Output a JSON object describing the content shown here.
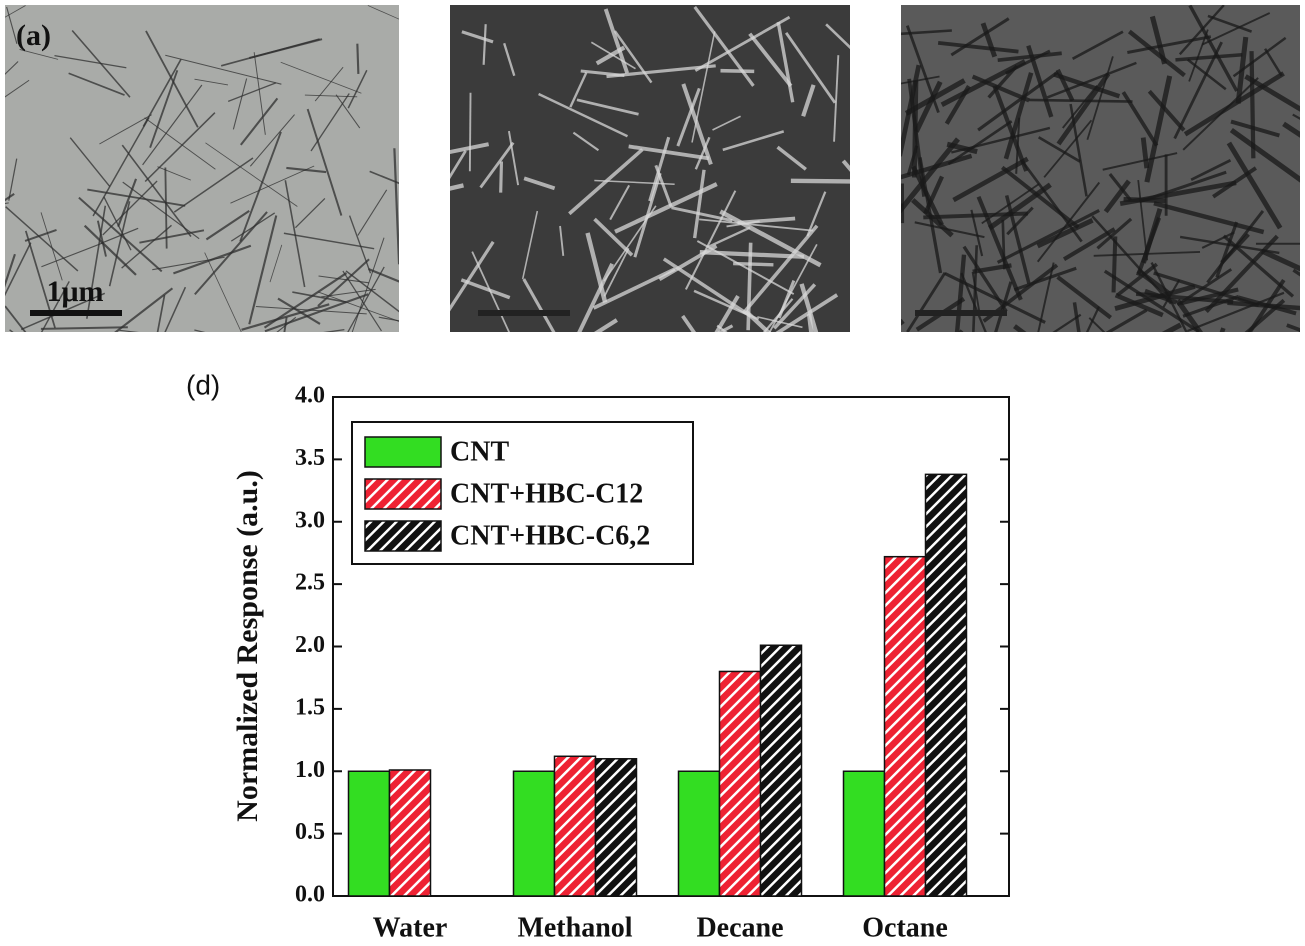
{
  "micrograph_a": {
    "label": "(a)",
    "scale_bar": "1μm"
  },
  "chart_data": {
    "type": "bar",
    "panel_label": "(d)",
    "y_label": "Normalized Response (a.u.)",
    "categories": [
      "Water",
      "Methanol",
      "Decane",
      "Octane"
    ],
    "series": [
      {
        "name": "CNT",
        "color": "#33dd22",
        "values": [
          1.0,
          1.0,
          1.0,
          1.0
        ]
      },
      {
        "name": "CNT+HBC-C12",
        "color": "#ee2233",
        "hatch": true,
        "values": [
          1.01,
          1.12,
          1.8,
          2.72
        ]
      },
      {
        "name": "CNT+HBC-C6,2",
        "color": "#111111",
        "hatch": true,
        "values": [
          null,
          1.1,
          2.01,
          3.38
        ]
      }
    ],
    "ylim": [
      0,
      4
    ],
    "yticks": [
      {
        "value": 0,
        "label": "0.0"
      },
      {
        "value": 0.5,
        "label": "0.5"
      },
      {
        "value": 1,
        "label": "1.0"
      },
      {
        "value": 1.5,
        "label": "1.5"
      },
      {
        "value": 2,
        "label": "2.0"
      },
      {
        "value": 2.5,
        "label": "2.5"
      },
      {
        "value": 3,
        "label": "3.0"
      },
      {
        "value": 3.5,
        "label": "3.5"
      },
      {
        "value": 4,
        "label": "4.0"
      }
    ],
    "grid": false,
    "legend": "upper left"
  }
}
